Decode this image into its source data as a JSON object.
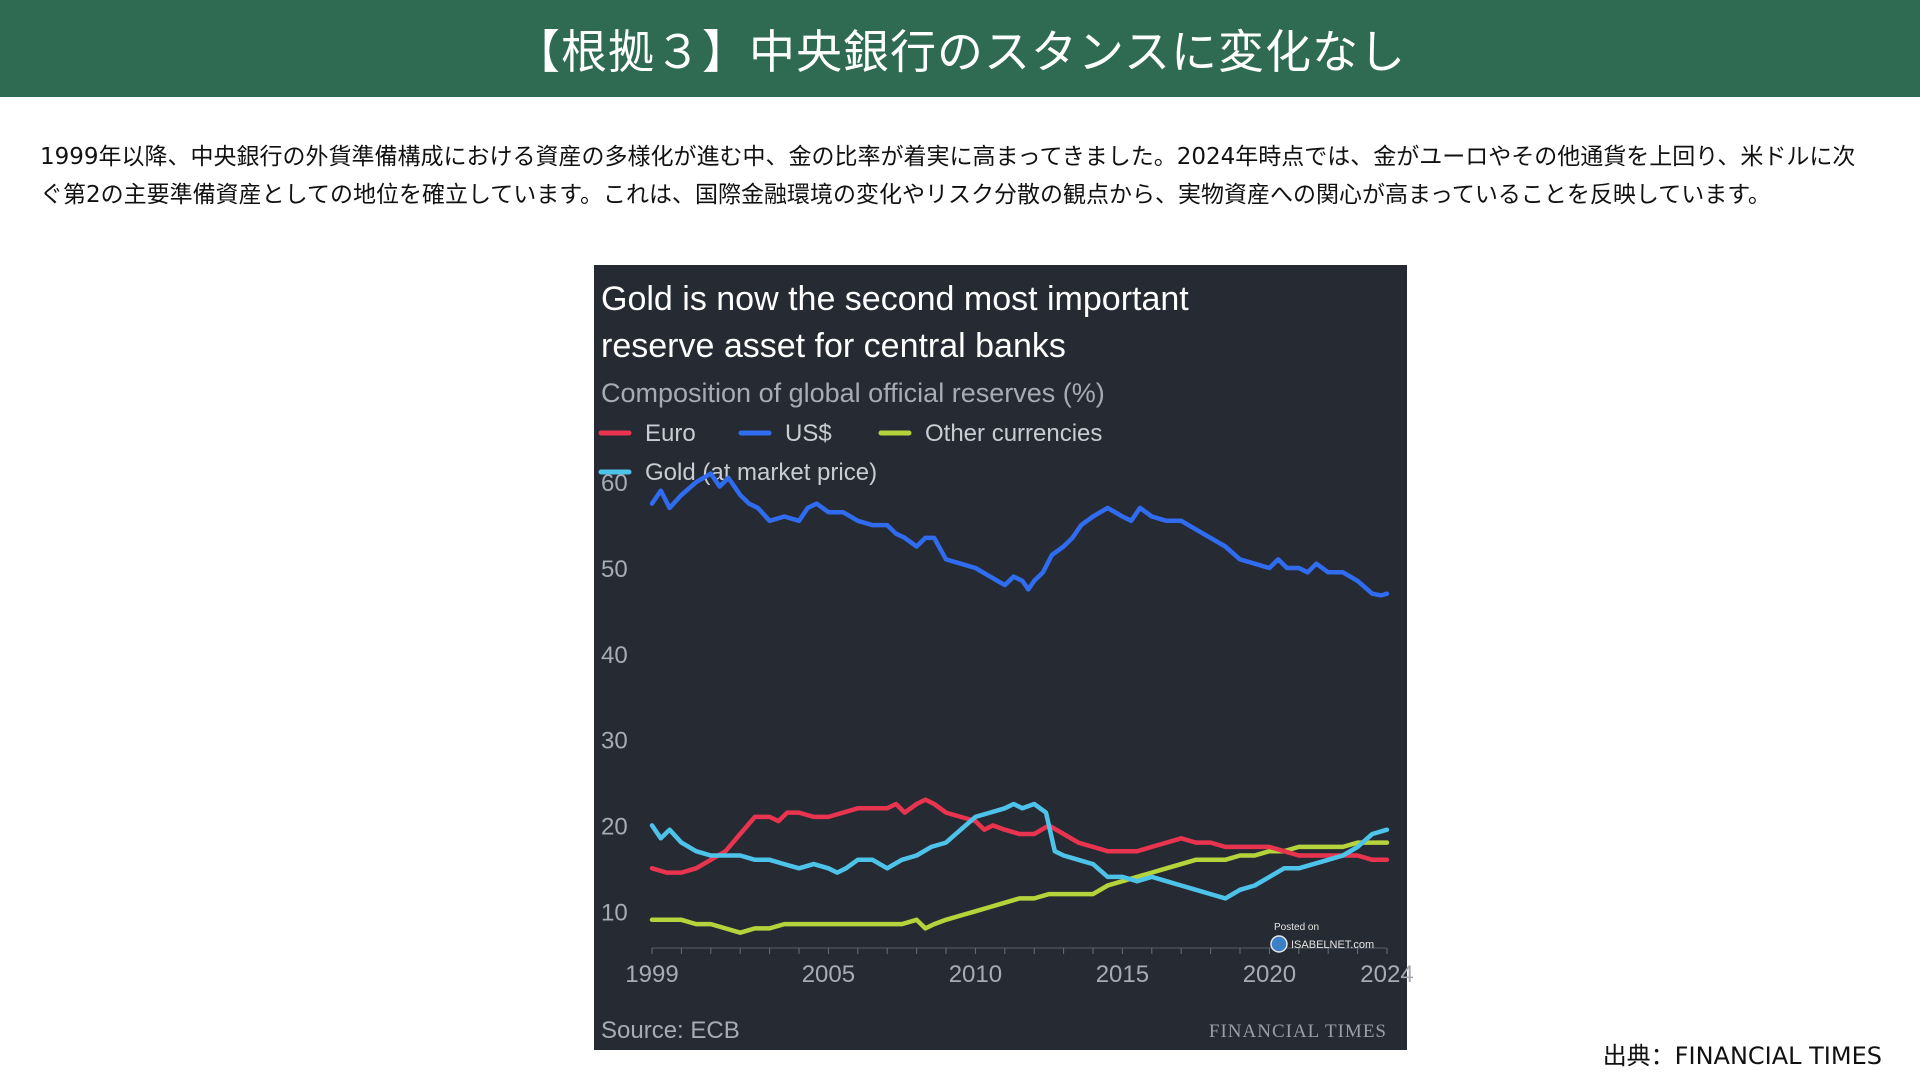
{
  "header": {
    "title": "【根拠３】中央銀行のスタンスに変化なし",
    "background_color": "#2f6a53"
  },
  "body": {
    "paragraph": "1999年以降、中央銀行の外貨準備構成における資産の多様化が進む中、金の比率が着実に高まってきました。2024年時点では、金がユーロやその他通貨を上回り、米ドルに次ぐ第2の主要準備資産としての地位を確立しています。これは、国際金融環境の変化やリスク分散の観点から、実物資産への関心が高まっていることを反映しています。"
  },
  "chart_data": {
    "type": "line",
    "title": "Gold is now the second most important reserve asset for central banks",
    "subtitle": "Composition of global official reserves (%)",
    "background_color": "#262a33",
    "legend_placement": "top-left",
    "x_ticks": [
      1999,
      2005,
      2010,
      2015,
      2020,
      2024
    ],
    "y_ticks": [
      10,
      20,
      30,
      40,
      50,
      60
    ],
    "xlim": [
      1999,
      2024
    ],
    "ylim": [
      7,
      62
    ],
    "grid": false,
    "source": "Source: ECB",
    "publisher": "FINANCIAL TIMES",
    "watermark": "Posted on ISABELNET.com",
    "series": [
      {
        "name": "US$",
        "color": "#2f6cf0",
        "points": [
          [
            1999.0,
            57.5
          ],
          [
            1999.3,
            59
          ],
          [
            1999.6,
            57
          ],
          [
            2000.0,
            58.5
          ],
          [
            2000.5,
            60
          ],
          [
            2001.0,
            61
          ],
          [
            2001.3,
            59.5
          ],
          [
            2001.6,
            60.5
          ],
          [
            2002.0,
            58.5
          ],
          [
            2002.3,
            57.5
          ],
          [
            2002.6,
            57
          ],
          [
            2003.0,
            55.5
          ],
          [
            2003.5,
            56
          ],
          [
            2004.0,
            55.5
          ],
          [
            2004.3,
            57
          ],
          [
            2004.6,
            57.5
          ],
          [
            2005.0,
            56.5
          ],
          [
            2005.5,
            56.5
          ],
          [
            2006.0,
            55.5
          ],
          [
            2006.5,
            55
          ],
          [
            2007.0,
            55
          ],
          [
            2007.3,
            54
          ],
          [
            2007.6,
            53.5
          ],
          [
            2008.0,
            52.5
          ],
          [
            2008.3,
            53.5
          ],
          [
            2008.6,
            53.5
          ],
          [
            2009.0,
            51
          ],
          [
            2009.5,
            50.5
          ],
          [
            2010.0,
            50
          ],
          [
            2010.5,
            49
          ],
          [
            2011.0,
            48
          ],
          [
            2011.3,
            49
          ],
          [
            2011.6,
            48.5
          ],
          [
            2011.8,
            47.5
          ],
          [
            2012.0,
            48.5
          ],
          [
            2012.3,
            49.5
          ],
          [
            2012.6,
            51.5
          ],
          [
            2013.0,
            52.5
          ],
          [
            2013.3,
            53.5
          ],
          [
            2013.6,
            55
          ],
          [
            2014.0,
            56
          ],
          [
            2014.5,
            57
          ],
          [
            2015.0,
            56
          ],
          [
            2015.3,
            55.5
          ],
          [
            2015.6,
            57
          ],
          [
            2016.0,
            56
          ],
          [
            2016.5,
            55.5
          ],
          [
            2017.0,
            55.5
          ],
          [
            2017.5,
            54.5
          ],
          [
            2018.0,
            53.5
          ],
          [
            2018.5,
            52.5
          ],
          [
            2019.0,
            51
          ],
          [
            2019.5,
            50.5
          ],
          [
            2020.0,
            50
          ],
          [
            2020.3,
            51
          ],
          [
            2020.6,
            50
          ],
          [
            2021.0,
            50
          ],
          [
            2021.3,
            49.5
          ],
          [
            2021.6,
            50.5
          ],
          [
            2022.0,
            49.5
          ],
          [
            2022.5,
            49.5
          ],
          [
            2023.0,
            48.5
          ],
          [
            2023.5,
            47
          ],
          [
            2023.8,
            46.8
          ],
          [
            2024.0,
            47
          ]
        ]
      },
      {
        "name": "Euro",
        "color": "#e8344f",
        "points": [
          [
            1999.0,
            15
          ],
          [
            1999.5,
            14.5
          ],
          [
            2000.0,
            14.5
          ],
          [
            2000.5,
            15
          ],
          [
            2001.0,
            16
          ],
          [
            2001.5,
            17
          ],
          [
            2002.0,
            19
          ],
          [
            2002.5,
            21
          ],
          [
            2003.0,
            21
          ],
          [
            2003.3,
            20.5
          ],
          [
            2003.6,
            21.5
          ],
          [
            2004.0,
            21.5
          ],
          [
            2004.5,
            21
          ],
          [
            2005.0,
            21
          ],
          [
            2005.5,
            21.5
          ],
          [
            2006.0,
            22
          ],
          [
            2006.5,
            22
          ],
          [
            2007.0,
            22
          ],
          [
            2007.3,
            22.5
          ],
          [
            2007.6,
            21.5
          ],
          [
            2008.0,
            22.5
          ],
          [
            2008.3,
            23
          ],
          [
            2008.6,
            22.5
          ],
          [
            2009.0,
            21.5
          ],
          [
            2009.5,
            21
          ],
          [
            2010.0,
            20.5
          ],
          [
            2010.3,
            19.5
          ],
          [
            2010.6,
            20
          ],
          [
            2011.0,
            19.5
          ],
          [
            2011.5,
            19
          ],
          [
            2012.0,
            19
          ],
          [
            2012.5,
            20
          ],
          [
            2013.0,
            19
          ],
          [
            2013.5,
            18
          ],
          [
            2014.0,
            17.5
          ],
          [
            2014.5,
            17
          ],
          [
            2015.0,
            17
          ],
          [
            2015.5,
            17
          ],
          [
            2016.0,
            17.5
          ],
          [
            2016.5,
            18
          ],
          [
            2017.0,
            18.5
          ],
          [
            2017.5,
            18
          ],
          [
            2018.0,
            18
          ],
          [
            2018.5,
            17.5
          ],
          [
            2019.0,
            17.5
          ],
          [
            2019.5,
            17.5
          ],
          [
            2020.0,
            17.5
          ],
          [
            2020.5,
            17
          ],
          [
            2021.0,
            16.5
          ],
          [
            2021.5,
            16.5
          ],
          [
            2022.0,
            16.5
          ],
          [
            2022.5,
            16.5
          ],
          [
            2023.0,
            16.5
          ],
          [
            2023.5,
            16
          ],
          [
            2024.0,
            16
          ]
        ]
      },
      {
        "name": "Other currencies",
        "color": "#b5d33a",
        "points": [
          [
            1999.0,
            9
          ],
          [
            1999.5,
            9
          ],
          [
            2000.0,
            9
          ],
          [
            2000.5,
            8.5
          ],
          [
            2001.0,
            8.5
          ],
          [
            2001.5,
            8
          ],
          [
            2002.0,
            7.5
          ],
          [
            2002.5,
            8
          ],
          [
            2003.0,
            8
          ],
          [
            2003.5,
            8.5
          ],
          [
            2004.0,
            8.5
          ],
          [
            2004.5,
            8.5
          ],
          [
            2005.0,
            8.5
          ],
          [
            2005.5,
            8.5
          ],
          [
            2006.0,
            8.5
          ],
          [
            2006.5,
            8.5
          ],
          [
            2007.0,
            8.5
          ],
          [
            2007.5,
            8.5
          ],
          [
            2008.0,
            9
          ],
          [
            2008.3,
            8
          ],
          [
            2008.6,
            8.5
          ],
          [
            2009.0,
            9
          ],
          [
            2009.5,
            9.5
          ],
          [
            2010.0,
            10
          ],
          [
            2010.5,
            10.5
          ],
          [
            2011.0,
            11
          ],
          [
            2011.5,
            11.5
          ],
          [
            2012.0,
            11.5
          ],
          [
            2012.5,
            12
          ],
          [
            2013.0,
            12
          ],
          [
            2013.5,
            12
          ],
          [
            2014.0,
            12
          ],
          [
            2014.5,
            13
          ],
          [
            2015.0,
            13.5
          ],
          [
            2015.5,
            14
          ],
          [
            2016.0,
            14.5
          ],
          [
            2016.5,
            15
          ],
          [
            2017.0,
            15.5
          ],
          [
            2017.5,
            16
          ],
          [
            2018.0,
            16
          ],
          [
            2018.5,
            16
          ],
          [
            2019.0,
            16.5
          ],
          [
            2019.5,
            16.5
          ],
          [
            2020.0,
            17
          ],
          [
            2020.5,
            17
          ],
          [
            2021.0,
            17.5
          ],
          [
            2021.5,
            17.5
          ],
          [
            2022.0,
            17.5
          ],
          [
            2022.5,
            17.5
          ],
          [
            2023.0,
            18
          ],
          [
            2023.5,
            18
          ],
          [
            2024.0,
            18
          ]
        ]
      },
      {
        "name": "Gold (at market price)",
        "color": "#4ec3ea",
        "points": [
          [
            1999.0,
            20
          ],
          [
            1999.3,
            18.5
          ],
          [
            1999.6,
            19.5
          ],
          [
            2000.0,
            18
          ],
          [
            2000.5,
            17
          ],
          [
            2001.0,
            16.5
          ],
          [
            2001.5,
            16.5
          ],
          [
            2002.0,
            16.5
          ],
          [
            2002.5,
            16
          ],
          [
            2003.0,
            16
          ],
          [
            2003.5,
            15.5
          ],
          [
            2004.0,
            15
          ],
          [
            2004.5,
            15.5
          ],
          [
            2005.0,
            15
          ],
          [
            2005.3,
            14.5
          ],
          [
            2005.6,
            15
          ],
          [
            2006.0,
            16
          ],
          [
            2006.5,
            16
          ],
          [
            2007.0,
            15
          ],
          [
            2007.5,
            16
          ],
          [
            2008.0,
            16.5
          ],
          [
            2008.5,
            17.5
          ],
          [
            2009.0,
            18
          ],
          [
            2009.5,
            19.5
          ],
          [
            2010.0,
            21
          ],
          [
            2010.5,
            21.5
          ],
          [
            2011.0,
            22
          ],
          [
            2011.3,
            22.5
          ],
          [
            2011.6,
            22
          ],
          [
            2012.0,
            22.5
          ],
          [
            2012.4,
            21.5
          ],
          [
            2012.7,
            17
          ],
          [
            2013.0,
            16.5
          ],
          [
            2013.5,
            16
          ],
          [
            2014.0,
            15.5
          ],
          [
            2014.5,
            14
          ],
          [
            2015.0,
            14
          ],
          [
            2015.5,
            13.5
          ],
          [
            2016.0,
            14
          ],
          [
            2016.5,
            13.5
          ],
          [
            2017.0,
            13
          ],
          [
            2017.5,
            12.5
          ],
          [
            2018.0,
            12
          ],
          [
            2018.5,
            11.5
          ],
          [
            2019.0,
            12.5
          ],
          [
            2019.5,
            13
          ],
          [
            2020.0,
            14
          ],
          [
            2020.5,
            15
          ],
          [
            2021.0,
            15
          ],
          [
            2021.5,
            15.5
          ],
          [
            2022.0,
            16
          ],
          [
            2022.5,
            16.5
          ],
          [
            2023.0,
            17.5
          ],
          [
            2023.5,
            19
          ],
          [
            2024.0,
            19.5
          ]
        ]
      }
    ]
  },
  "footer": {
    "credit": "出典：FINANCIAL TIMES"
  }
}
